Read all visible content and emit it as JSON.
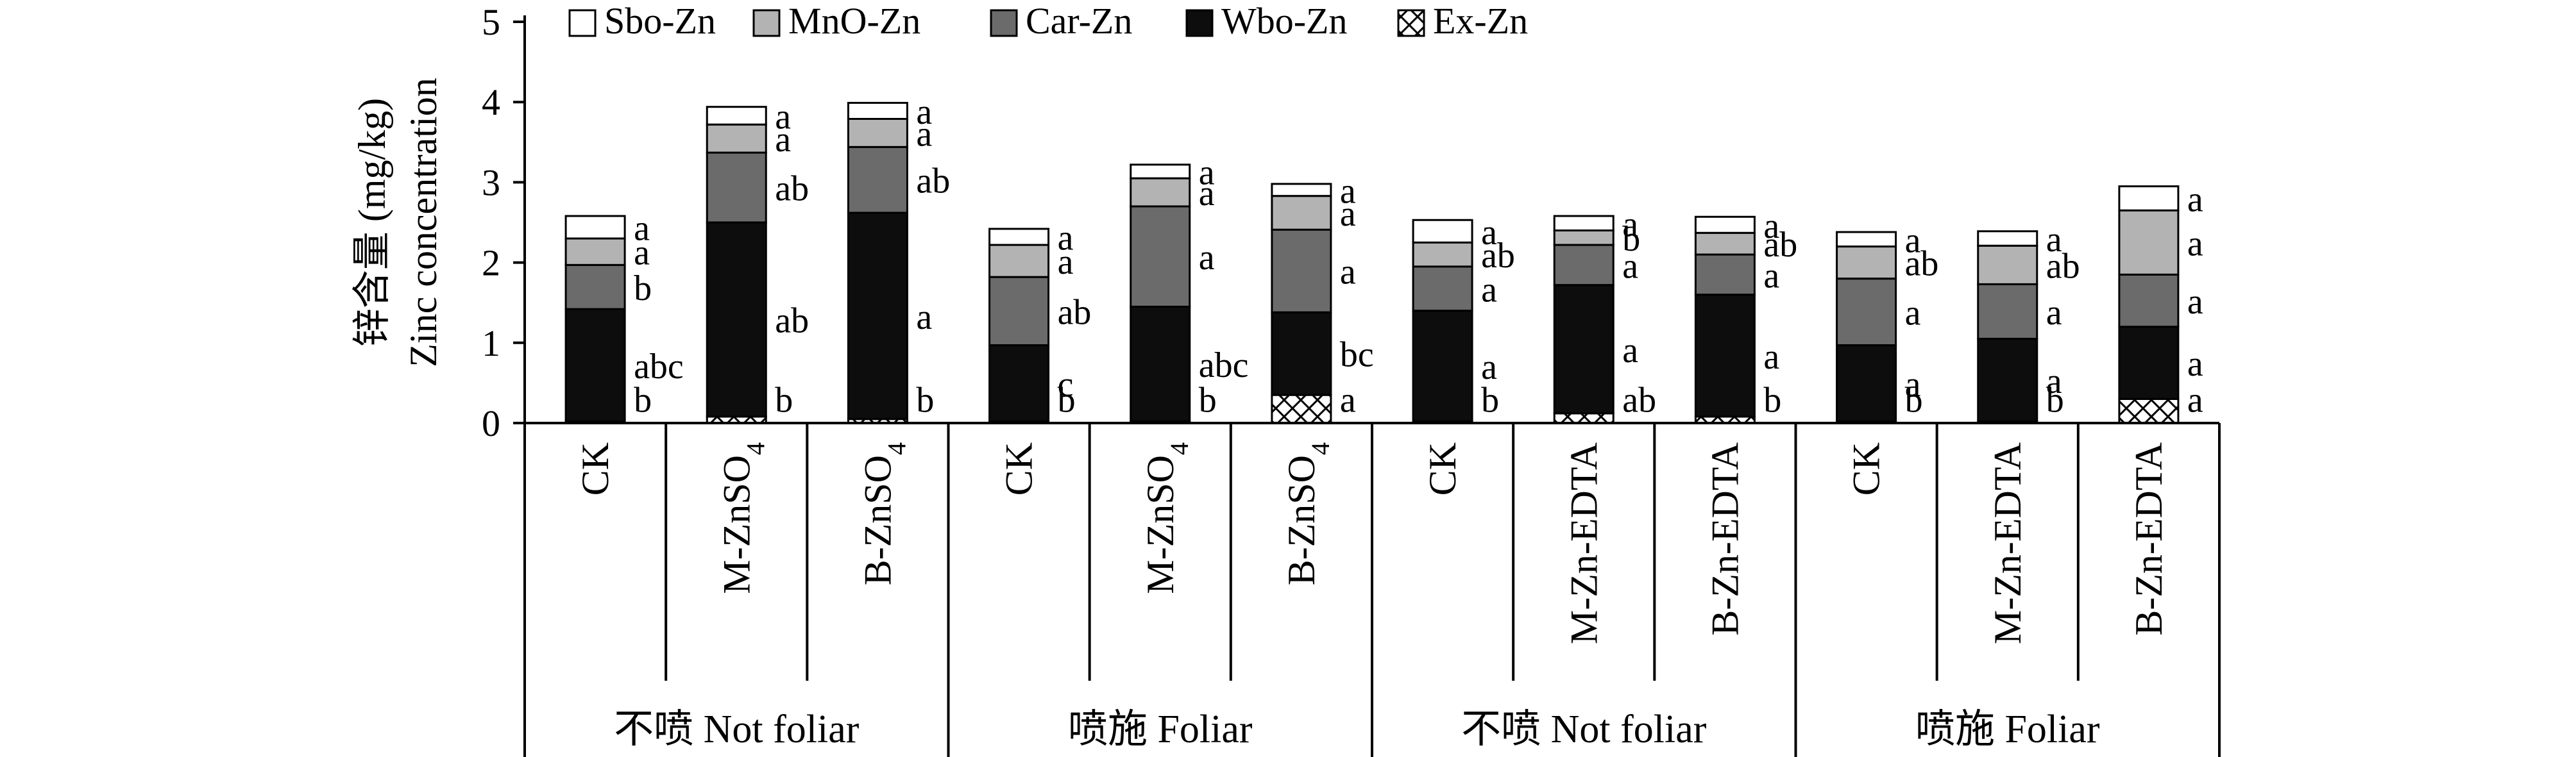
{
  "colors": {
    "Sbo-Zn": "#ffffff",
    "MnO-Zn": "#b3b3b3",
    "Car-Zn": "#6b6b6b",
    "Wbo-Zn": "#0d0d0d",
    "Ex-Zn": "pattern-crosshatch"
  },
  "chart_data": {
    "type": "bar",
    "stacked": true,
    "title": "",
    "xlabel": "",
    "ylabel": "锌含量 (mg/kg)",
    "ylabel2": "Zinc concentration",
    "ylim": [
      0,
      5
    ],
    "yticks": [
      0,
      1,
      2,
      3,
      4,
      5
    ],
    "legend": [
      "Sbo-Zn",
      "MnO-Zn",
      "Car-Zn",
      "Wbo-Zn",
      "Ex-Zn"
    ],
    "legend_position": "top",
    "categories": [
      "CK",
      "M-ZnSO4",
      "B-ZnSO4",
      "CK",
      "M-ZnSO4",
      "B-ZnSO4",
      "CK",
      "M-Zn-EDTA",
      "B-Zn-EDTA",
      "CK",
      "M-Zn-EDTA",
      "B-Zn-EDTA"
    ],
    "category_labels": [
      {
        "base": "CK",
        "sub": ""
      },
      {
        "base": "M-ZnSO",
        "sub": "4"
      },
      {
        "base": "B-ZnSO",
        "sub": "4"
      },
      {
        "base": "CK",
        "sub": ""
      },
      {
        "base": "M-ZnSO",
        "sub": "4"
      },
      {
        "base": "B-ZnSO",
        "sub": "4"
      },
      {
        "base": "CK",
        "sub": ""
      },
      {
        "base": "M-Zn-EDTA",
        "sub": ""
      },
      {
        "base": "B-Zn-EDTA",
        "sub": ""
      },
      {
        "base": "CK",
        "sub": ""
      },
      {
        "base": "M-Zn-EDTA",
        "sub": ""
      },
      {
        "base": "B-Zn-EDTA",
        "sub": ""
      }
    ],
    "groups": [
      {
        "label": "不喷 Not foliar",
        "start": 0,
        "end": 2
      },
      {
        "label": "喷施 Foliar",
        "start": 3,
        "end": 5
      },
      {
        "label": "不喷 Not foliar",
        "start": 6,
        "end": 8
      },
      {
        "label": "喷施 Foliar",
        "start": 9,
        "end": 11
      }
    ],
    "series": [
      {
        "name": "Ex-Zn",
        "values": [
          0.02,
          0.08,
          0.05,
          0.02,
          0.02,
          0.35,
          0.02,
          0.12,
          0.08,
          0.02,
          0.02,
          0.3
        ],
        "letters": [
          "b",
          "b",
          "b",
          "b",
          "b",
          "a",
          "b",
          "ab",
          "b",
          "b",
          "b",
          "a"
        ]
      },
      {
        "name": "Wbo-Zn",
        "values": [
          1.4,
          2.42,
          2.57,
          0.95,
          1.43,
          1.03,
          1.38,
          1.6,
          1.52,
          0.95,
          1.03,
          0.9
        ],
        "letters": [
          "abc",
          "ab",
          "a",
          "c",
          "abc",
          "bc",
          "a",
          "a",
          "a",
          "a",
          "a",
          "a"
        ]
      },
      {
        "name": "Car-Zn",
        "values": [
          0.55,
          0.87,
          0.82,
          0.85,
          1.25,
          1.03,
          0.55,
          0.5,
          0.5,
          0.83,
          0.68,
          0.65
        ],
        "letters": [
          "b",
          "ab",
          "ab",
          "ab",
          "a",
          "a",
          "a",
          "a",
          "a",
          "a",
          "a",
          "a"
        ]
      },
      {
        "name": "MnO-Zn",
        "values": [
          0.33,
          0.35,
          0.35,
          0.4,
          0.35,
          0.42,
          0.3,
          0.18,
          0.27,
          0.4,
          0.48,
          0.8
        ],
        "letters": [
          "a",
          "a",
          "a",
          "a",
          "a",
          "a",
          "ab",
          "b",
          "ab",
          "ab",
          "ab",
          "a"
        ]
      },
      {
        "name": "Sbo-Zn",
        "values": [
          0.28,
          0.22,
          0.2,
          0.2,
          0.17,
          0.15,
          0.28,
          0.18,
          0.2,
          0.18,
          0.18,
          0.3
        ],
        "letters": [
          "a",
          "a",
          "a",
          "a",
          "a",
          "a",
          "a",
          "a",
          "a",
          "a",
          "a",
          "a"
        ]
      }
    ]
  }
}
